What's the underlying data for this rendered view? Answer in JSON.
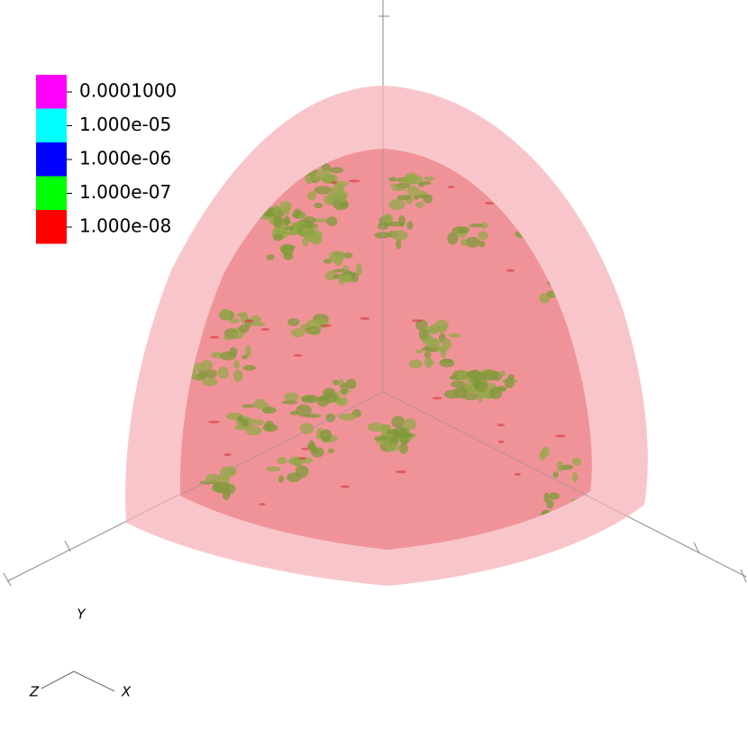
{
  "legend": {
    "entries": [
      {
        "label": "0.0001000",
        "color": "#ff00ff"
      },
      {
        "label": "1.000e-05",
        "color": "#00ffff"
      },
      {
        "label": "1.000e-06",
        "color": "#0000ff"
      },
      {
        "label": "1.000e-07",
        "color": "#00ff00"
      },
      {
        "label": "1.000e-08",
        "color": "#ff0000"
      }
    ]
  },
  "orientation_axes": {
    "y": "Y",
    "z": "Z",
    "x": "X"
  }
}
